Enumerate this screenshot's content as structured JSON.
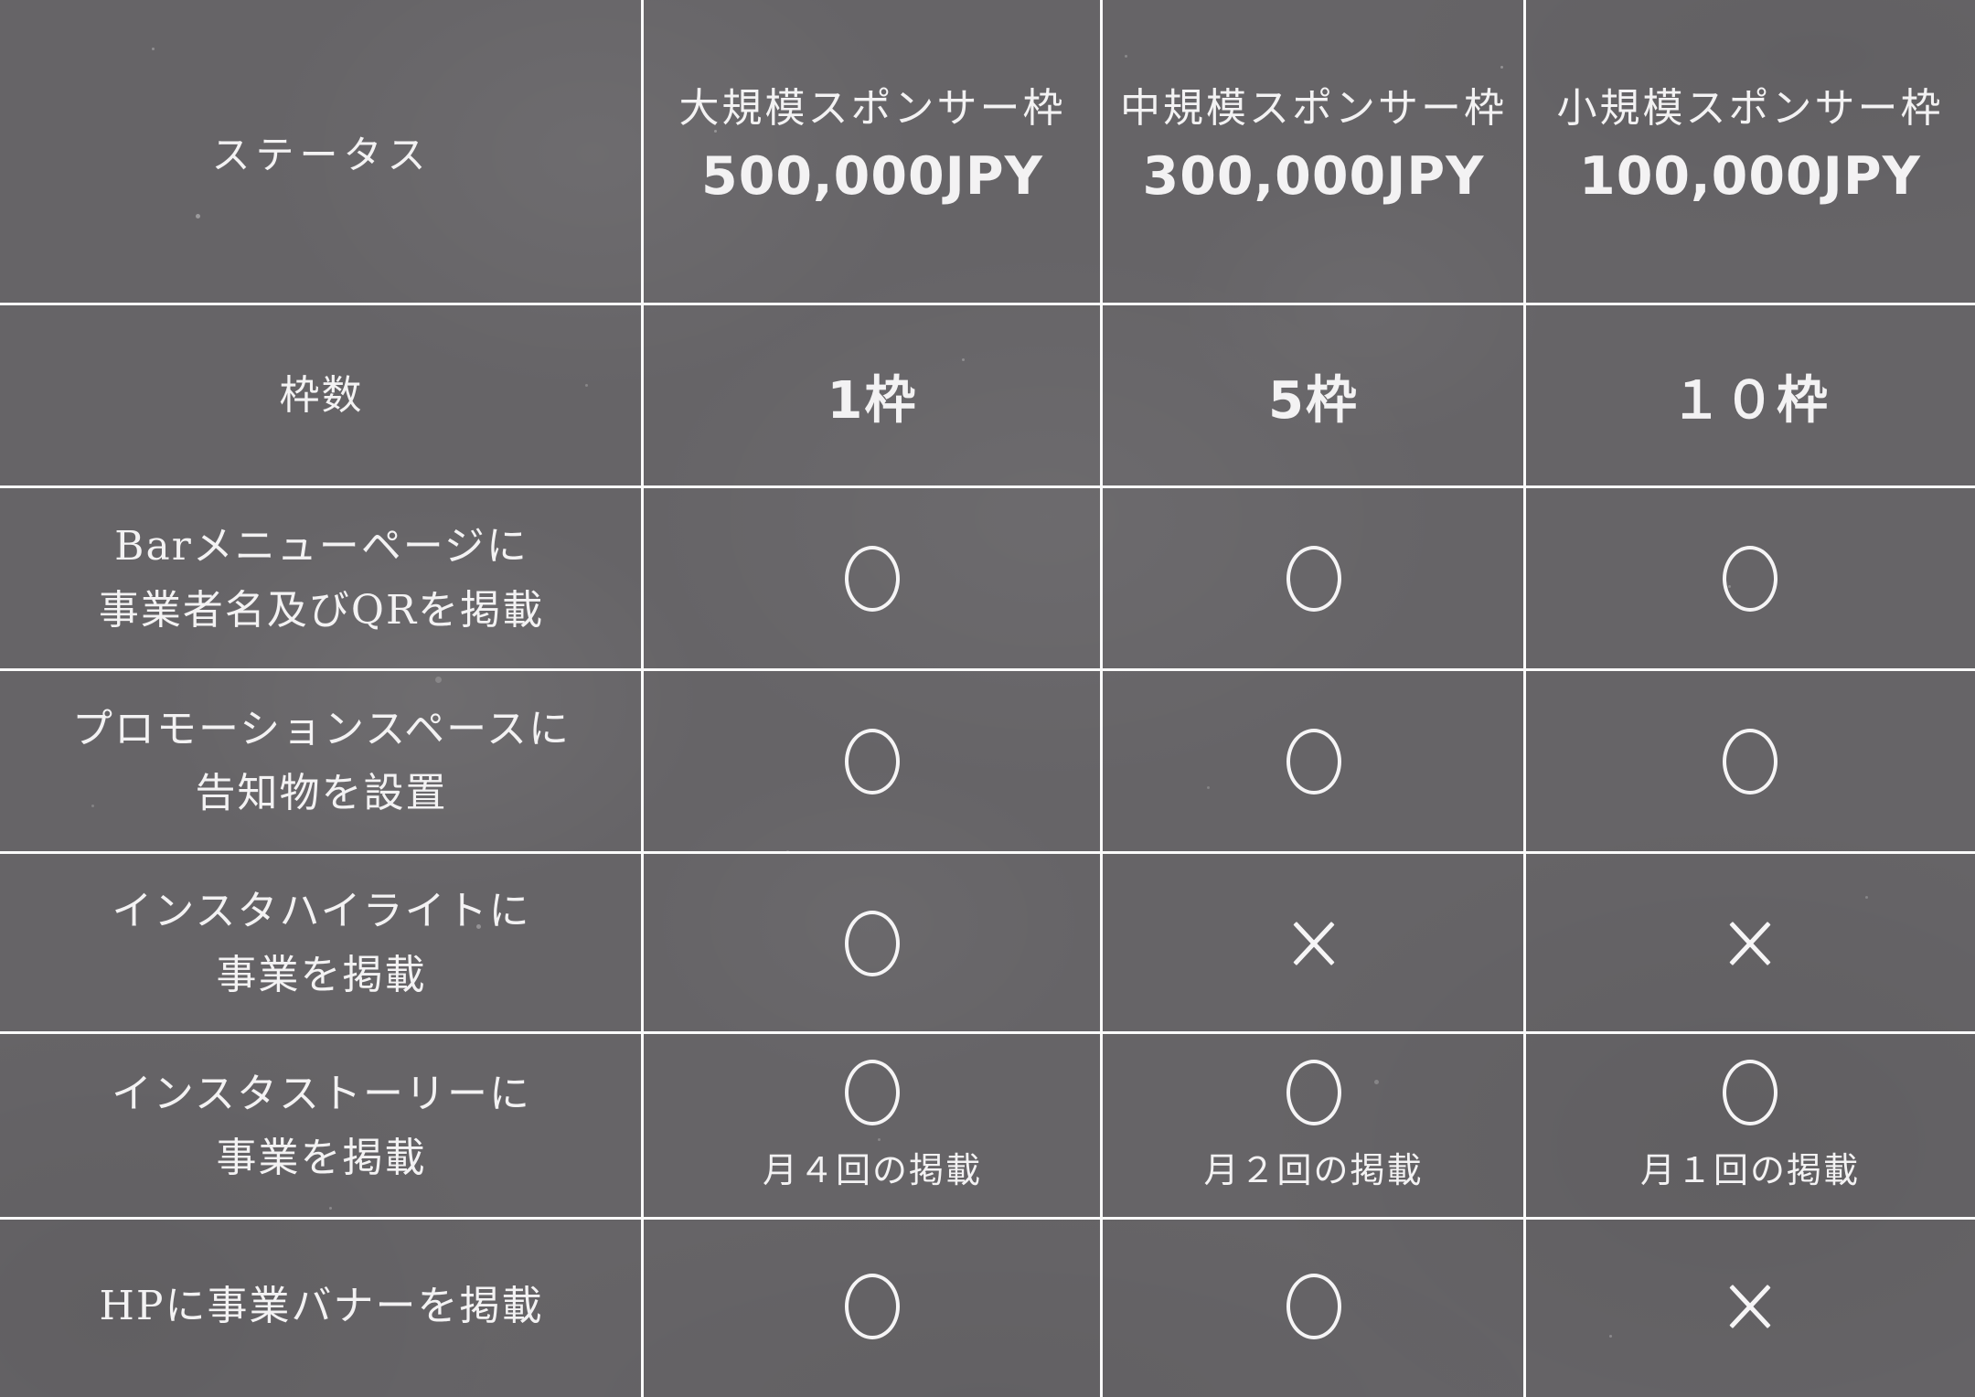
{
  "colors": {
    "background": "#666467",
    "grid_line": "#fafafa",
    "text": "#f3f2f3"
  },
  "table": {
    "status_header": "ステータス",
    "plans": [
      {
        "name": "大規模スポンサー枠",
        "price": "500,000JPY"
      },
      {
        "name": "中規模スポンサー枠",
        "price": "300,000JPY"
      },
      {
        "name": "小規模スポンサー枠",
        "price": "100,000JPY"
      }
    ],
    "rows": [
      {
        "label": "枠数",
        "label_line2": "",
        "type": "text",
        "values": [
          "1枠",
          "5枠",
          "１０枠"
        ]
      },
      {
        "label": "Barメニューページに",
        "label_line2": "事業者名及びQRを掲載",
        "type": "mark",
        "marks": [
          "circle",
          "circle",
          "circle"
        ],
        "notes": [
          "",
          "",
          ""
        ]
      },
      {
        "label": "プロモーションスペースに",
        "label_line2": "告知物を設置",
        "type": "mark",
        "marks": [
          "circle",
          "circle",
          "circle"
        ],
        "notes": [
          "",
          "",
          ""
        ]
      },
      {
        "label": "インスタハイライトに",
        "label_line2": "事業を掲載",
        "type": "mark",
        "marks": [
          "circle",
          "cross",
          "cross"
        ],
        "notes": [
          "",
          "",
          ""
        ]
      },
      {
        "label": "インスタストーリーに",
        "label_line2": "事業を掲載",
        "type": "mark",
        "marks": [
          "circle",
          "circle",
          "circle"
        ],
        "notes": [
          "月４回の掲載",
          "月２回の掲載",
          "月１回の掲載"
        ]
      },
      {
        "label": "HPに事業バナーを掲載",
        "label_line2": "",
        "type": "mark",
        "marks": [
          "circle",
          "circle",
          "cross"
        ],
        "notes": [
          "",
          "",
          ""
        ]
      }
    ]
  }
}
